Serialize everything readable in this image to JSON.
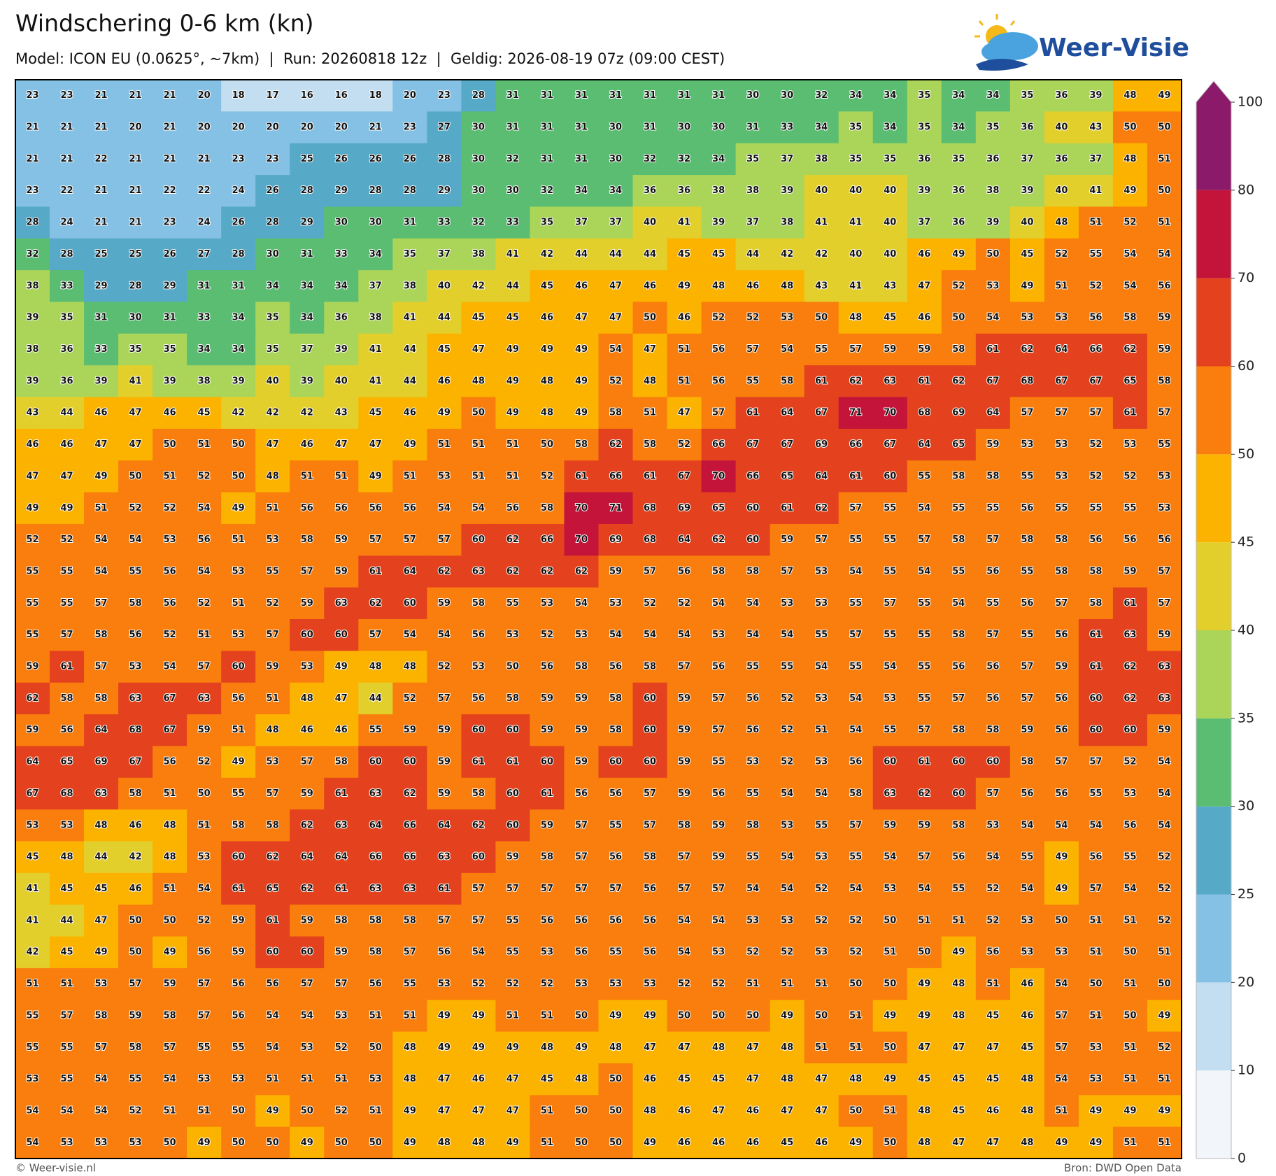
{
  "header": {
    "title": "Windschering 0-6 km (kn)",
    "subtitle": "Model: ICON EU (0.0625°, ~7km)  |  Run: 20260818 12z  |  Geldig: 2026-08-19 07z (09:00 CEST)"
  },
  "logo": {
    "text": "Weer-Visie"
  },
  "map": {
    "values": [
      [
        23,
        23,
        21,
        21,
        21,
        20,
        18,
        17,
        16,
        16,
        18,
        20,
        23,
        28,
        31,
        31,
        31,
        31,
        31,
        31,
        31,
        30,
        30,
        32,
        34,
        34,
        35,
        34,
        34,
        35,
        36,
        39,
        48,
        49
      ],
      [
        21,
        21,
        21,
        20,
        21,
        20,
        20,
        20,
        20,
        20,
        21,
        23,
        27,
        30,
        31,
        31,
        31,
        30,
        31,
        30,
        30,
        31,
        33,
        34,
        35,
        34,
        35,
        34,
        35,
        36,
        40,
        43,
        50,
        50
      ],
      [
        21,
        21,
        22,
        21,
        21,
        21,
        23,
        23,
        25,
        26,
        26,
        26,
        28,
        30,
        32,
        31,
        31,
        30,
        32,
        32,
        34,
        35,
        37,
        38,
        35,
        35,
        36,
        35,
        36,
        37,
        36,
        37,
        48,
        51
      ],
      [
        23,
        22,
        21,
        21,
        22,
        22,
        24,
        26,
        28,
        29,
        28,
        28,
        29,
        30,
        30,
        32,
        34,
        34,
        36,
        36,
        38,
        38,
        39,
        40,
        40,
        40,
        39,
        36,
        38,
        39,
        40,
        41,
        49,
        50
      ],
      [
        28,
        24,
        21,
        21,
        23,
        24,
        26,
        28,
        29,
        30,
        30,
        31,
        33,
        32,
        33,
        35,
        37,
        37,
        40,
        41,
        39,
        37,
        38,
        41,
        41,
        40,
        37,
        36,
        39,
        40,
        48,
        51,
        52,
        51
      ],
      [
        32,
        28,
        25,
        25,
        26,
        27,
        28,
        30,
        31,
        33,
        34,
        35,
        37,
        38,
        41,
        42,
        44,
        44,
        44,
        45,
        45,
        44,
        42,
        42,
        40,
        40,
        46,
        49,
        50,
        45,
        52,
        55,
        54,
        54
      ],
      [
        38,
        33,
        29,
        28,
        29,
        31,
        31,
        34,
        34,
        34,
        37,
        38,
        40,
        42,
        44,
        45,
        46,
        47,
        46,
        49,
        48,
        46,
        48,
        43,
        41,
        43,
        47,
        52,
        53,
        49,
        51,
        52,
        54,
        56
      ],
      [
        39,
        35,
        31,
        30,
        31,
        33,
        34,
        35,
        34,
        36,
        38,
        41,
        44,
        45,
        45,
        46,
        47,
        47,
        50,
        46,
        52,
        52,
        53,
        50,
        48,
        45,
        46,
        50,
        54,
        53,
        53,
        56,
        58,
        59
      ],
      [
        38,
        36,
        33,
        35,
        35,
        34,
        34,
        35,
        37,
        39,
        41,
        44,
        45,
        47,
        49,
        49,
        49,
        54,
        47,
        51,
        56,
        57,
        54,
        55,
        57,
        59,
        59,
        58,
        61,
        62,
        64,
        66,
        62,
        59
      ],
      [
        39,
        36,
        39,
        41,
        39,
        38,
        39,
        40,
        39,
        40,
        41,
        44,
        46,
        48,
        49,
        48,
        49,
        52,
        48,
        51,
        56,
        55,
        58,
        61,
        62,
        63,
        61,
        62,
        67,
        68,
        67,
        67,
        65,
        58
      ],
      [
        43,
        44,
        46,
        47,
        46,
        45,
        42,
        42,
        42,
        43,
        45,
        46,
        49,
        50,
        49,
        48,
        49,
        58,
        51,
        47,
        57,
        61,
        64,
        67,
        71,
        70,
        68,
        69,
        64,
        57,
        57,
        57,
        61,
        57
      ],
      [
        46,
        46,
        47,
        47,
        50,
        51,
        50,
        47,
        46,
        47,
        47,
        49,
        51,
        51,
        51,
        50,
        58,
        62,
        58,
        52,
        66,
        67,
        67,
        69,
        66,
        67,
        64,
        65,
        59,
        53,
        53,
        52,
        53,
        55
      ],
      [
        47,
        47,
        49,
        50,
        51,
        52,
        50,
        48,
        51,
        51,
        49,
        51,
        53,
        51,
        51,
        52,
        61,
        66,
        61,
        67,
        70,
        66,
        65,
        64,
        61,
        60,
        55,
        58,
        58,
        55,
        53,
        52,
        52,
        53
      ],
      [
        49,
        49,
        51,
        52,
        52,
        54,
        49,
        51,
        56,
        56,
        56,
        56,
        54,
        54,
        56,
        58,
        70,
        71,
        68,
        69,
        65,
        60,
        61,
        62,
        57,
        55,
        54,
        55,
        55,
        56,
        55,
        55,
        55,
        53
      ],
      [
        52,
        52,
        54,
        54,
        53,
        56,
        51,
        53,
        58,
        59,
        57,
        57,
        57,
        60,
        62,
        66,
        70,
        69,
        68,
        64,
        62,
        60,
        59,
        57,
        55,
        55,
        57,
        58,
        57,
        58,
        58,
        56,
        56,
        56
      ],
      [
        55,
        55,
        54,
        55,
        56,
        54,
        53,
        55,
        57,
        59,
        61,
        64,
        62,
        63,
        62,
        62,
        62,
        59,
        57,
        56,
        58,
        58,
        57,
        53,
        54,
        55,
        54,
        55,
        56,
        55,
        58,
        58,
        59,
        57
      ],
      [
        55,
        55,
        57,
        58,
        56,
        52,
        51,
        52,
        59,
        63,
        62,
        60,
        59,
        58,
        55,
        53,
        54,
        53,
        52,
        52,
        54,
        54,
        53,
        53,
        55,
        57,
        55,
        54,
        55,
        56,
        57,
        58,
        61,
        57
      ],
      [
        55,
        57,
        58,
        56,
        52,
        51,
        53,
        57,
        60,
        60,
        57,
        54,
        54,
        56,
        53,
        52,
        53,
        54,
        54,
        54,
        53,
        54,
        54,
        55,
        57,
        55,
        55,
        58,
        57,
        55,
        56,
        61,
        63,
        59
      ],
      [
        59,
        61,
        57,
        53,
        54,
        57,
        60,
        59,
        53,
        49,
        48,
        48,
        52,
        53,
        50,
        56,
        58,
        56,
        58,
        57,
        56,
        55,
        55,
        54,
        55,
        54,
        55,
        56,
        56,
        57,
        59,
        61,
        62,
        63
      ],
      [
        62,
        58,
        58,
        63,
        67,
        63,
        56,
        51,
        48,
        47,
        44,
        52,
        57,
        56,
        58,
        59,
        59,
        58,
        60,
        59,
        57,
        56,
        52,
        53,
        54,
        53,
        55,
        57,
        56,
        57,
        56,
        60,
        62,
        63
      ],
      [
        59,
        56,
        64,
        68,
        67,
        59,
        51,
        48,
        46,
        46,
        55,
        59,
        59,
        60,
        60,
        59,
        59,
        58,
        60,
        59,
        57,
        56,
        52,
        51,
        54,
        55,
        57,
        58,
        58,
        59,
        56,
        60,
        60,
        59
      ],
      [
        64,
        65,
        69,
        67,
        56,
        52,
        49,
        53,
        57,
        58,
        60,
        60,
        59,
        61,
        61,
        60,
        59,
        60,
        60,
        59,
        55,
        53,
        52,
        53,
        56,
        60,
        61,
        60,
        60,
        58,
        57,
        57,
        52,
        54
      ],
      [
        67,
        68,
        63,
        58,
        51,
        50,
        55,
        57,
        59,
        61,
        63,
        62,
        59,
        58,
        60,
        61,
        56,
        56,
        57,
        59,
        56,
        55,
        54,
        54,
        58,
        63,
        62,
        60,
        57,
        56,
        56,
        55,
        53,
        54
      ],
      [
        53,
        53,
        48,
        46,
        48,
        51,
        58,
        58,
        62,
        63,
        64,
        66,
        64,
        62,
        60,
        59,
        57,
        55,
        57,
        58,
        59,
        58,
        53,
        55,
        57,
        59,
        59,
        58,
        53,
        54,
        54,
        54,
        56,
        54
      ],
      [
        45,
        48,
        44,
        42,
        48,
        53,
        60,
        62,
        64,
        64,
        66,
        66,
        63,
        60,
        59,
        58,
        57,
        56,
        58,
        57,
        59,
        55,
        54,
        53,
        55,
        54,
        57,
        56,
        54,
        55,
        49,
        56,
        55,
        52
      ],
      [
        41,
        45,
        45,
        46,
        51,
        54,
        61,
        65,
        62,
        61,
        63,
        63,
        61,
        57,
        57,
        57,
        57,
        57,
        56,
        57,
        57,
        54,
        54,
        52,
        54,
        53,
        54,
        55,
        52,
        54,
        49,
        57,
        54,
        52
      ],
      [
        41,
        44,
        47,
        50,
        50,
        52,
        59,
        61,
        59,
        58,
        58,
        58,
        57,
        57,
        55,
        56,
        56,
        56,
        56,
        54,
        54,
        53,
        53,
        52,
        52,
        50,
        51,
        51,
        52,
        53,
        50,
        51,
        51,
        52
      ],
      [
        42,
        45,
        49,
        50,
        49,
        56,
        59,
        60,
        60,
        59,
        58,
        57,
        56,
        54,
        55,
        53,
        56,
        55,
        56,
        54,
        53,
        52,
        52,
        53,
        52,
        51,
        50,
        49,
        56,
        53,
        53,
        51,
        50,
        51
      ],
      [
        51,
        51,
        53,
        57,
        59,
        57,
        56,
        56,
        57,
        57,
        56,
        55,
        53,
        52,
        52,
        52,
        53,
        53,
        53,
        52,
        52,
        51,
        51,
        51,
        50,
        50,
        49,
        48,
        51,
        46,
        54,
        50,
        51,
        50
      ],
      [
        55,
        57,
        58,
        59,
        58,
        57,
        56,
        54,
        54,
        53,
        51,
        51,
        49,
        49,
        51,
        51,
        50,
        49,
        49,
        50,
        50,
        50,
        49,
        50,
        51,
        49,
        49,
        48,
        45,
        46,
        57,
        51,
        50,
        49
      ],
      [
        55,
        55,
        57,
        58,
        57,
        55,
        55,
        54,
        53,
        52,
        50,
        48,
        49,
        49,
        49,
        48,
        49,
        48,
        47,
        47,
        48,
        47,
        48,
        51,
        51,
        50,
        47,
        47,
        47,
        45,
        57,
        53,
        51,
        52
      ],
      [
        53,
        55,
        54,
        55,
        54,
        53,
        53,
        51,
        51,
        51,
        53,
        48,
        47,
        46,
        47,
        45,
        48,
        50,
        46,
        45,
        45,
        47,
        48,
        47,
        48,
        49,
        45,
        45,
        45,
        48,
        54,
        53,
        51,
        51
      ],
      [
        54,
        54,
        54,
        52,
        51,
        51,
        50,
        49,
        50,
        52,
        51,
        49,
        47,
        47,
        47,
        51,
        50,
        50,
        48,
        46,
        47,
        46,
        47,
        47,
        50,
        51,
        48,
        45,
        46,
        48,
        51,
        49,
        49,
        49
      ],
      [
        54,
        53,
        53,
        53,
        50,
        49,
        50,
        50,
        49,
        50,
        50,
        49,
        48,
        48,
        49,
        51,
        50,
        50,
        49,
        46,
        46,
        46,
        45,
        46,
        49,
        50,
        48,
        47,
        47,
        48,
        49,
        49,
        51,
        51
      ]
    ]
  },
  "colorbar": {
    "levels": [
      0,
      10,
      20,
      25,
      30,
      35,
      40,
      45,
      50,
      60,
      70,
      80,
      100
    ],
    "colors": [
      "#f2f6fa",
      "#c2def0",
      "#85c1e5",
      "#57a9c8",
      "#5bbd72",
      "#aad559",
      "#e3cf2c",
      "#fbb300",
      "#f97e0d",
      "#e4421e",
      "#c4143a",
      "#8b1a6a"
    ]
  },
  "footer": {
    "left": "© Weer-visie.nl",
    "right": "Bron: DWD Open Data"
  }
}
